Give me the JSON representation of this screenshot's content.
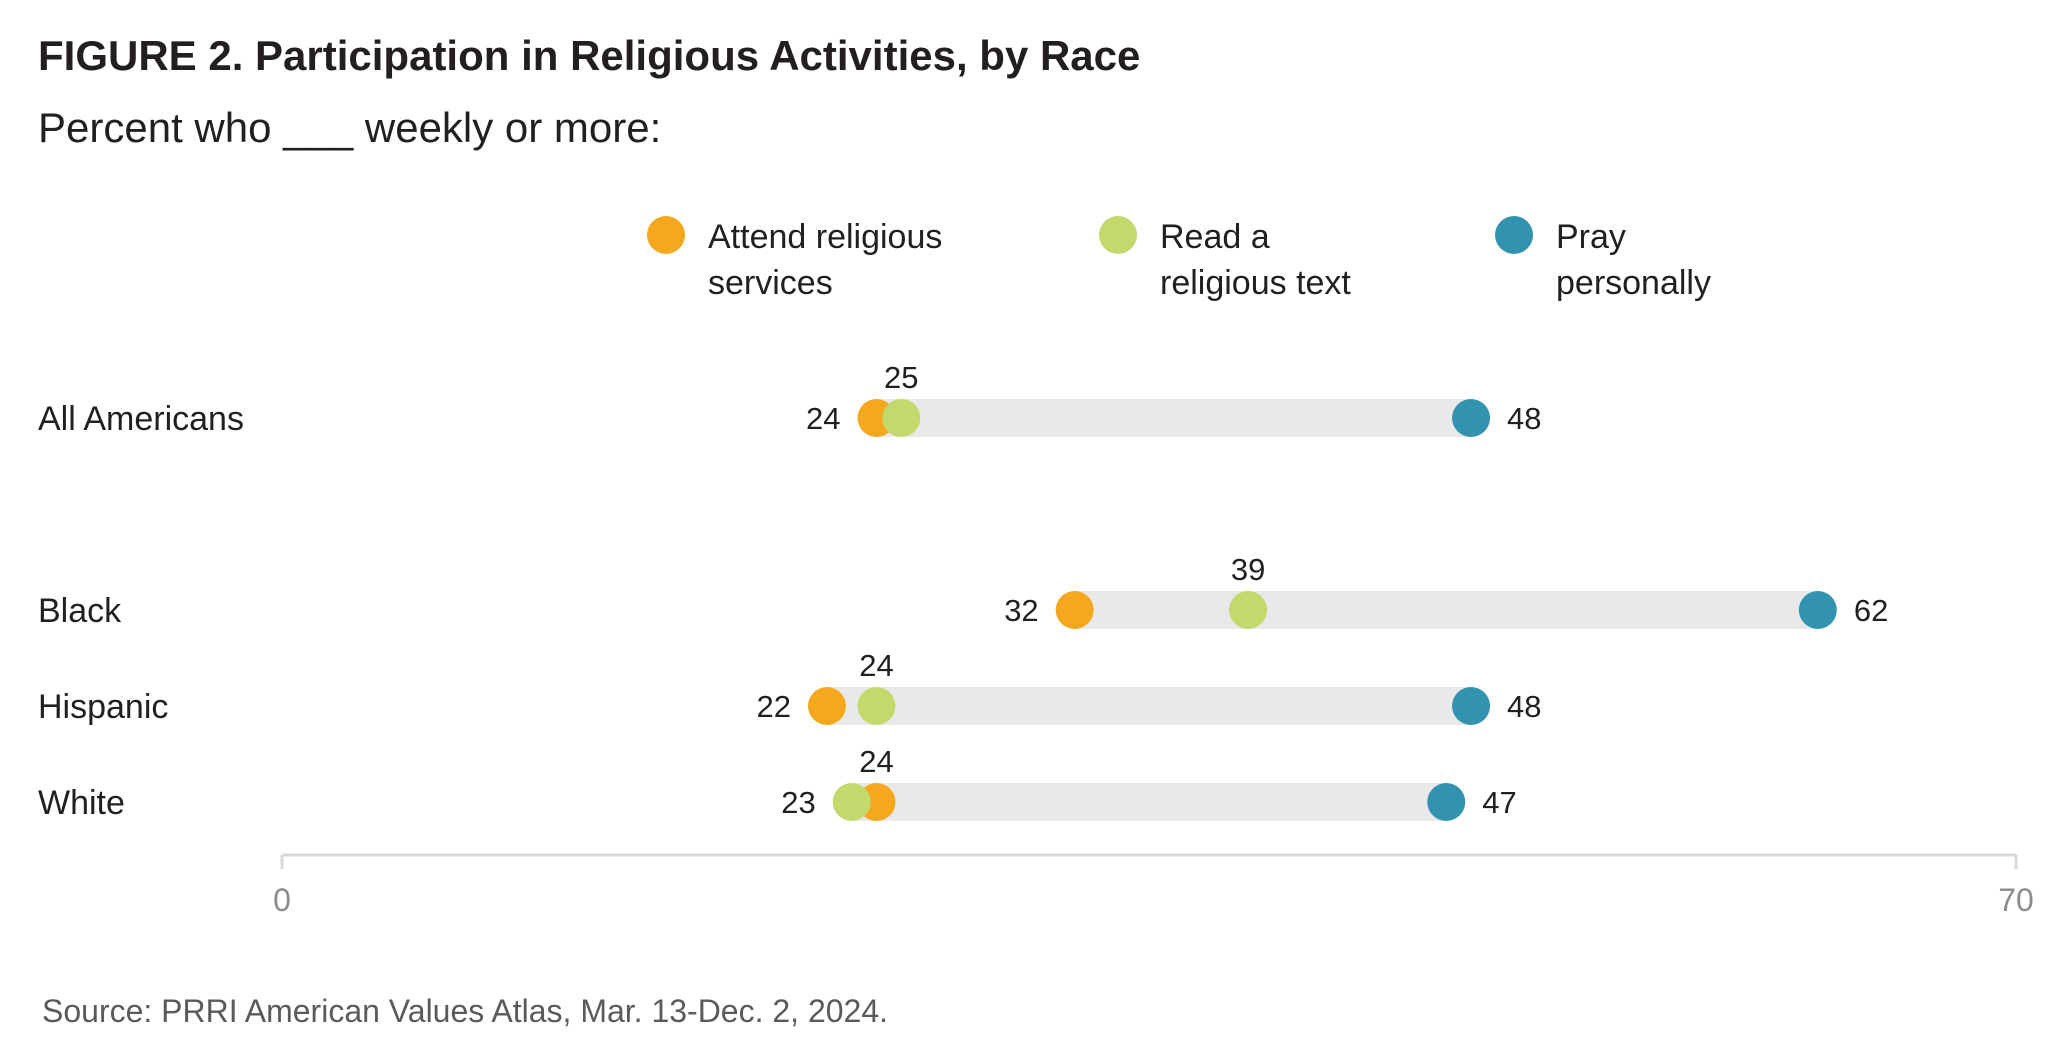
{
  "header": {
    "title": "FIGURE 2.  Participation in Religious Activities, by Race",
    "subtitle": "Percent who ___ weekly or more:"
  },
  "legend": [
    {
      "line1": "Attend religious",
      "line2": "services",
      "color": "#f5a81e"
    },
    {
      "line1": "Read a",
      "line2": "religious text",
      "color": "#c2d96b"
    },
    {
      "line1": "Pray",
      "line2": "personally",
      "color": "#3193b0"
    }
  ],
  "footer": {
    "source": "Source: PRRI American Values Atlas, Mar. 13-Dec. 2, 2024."
  },
  "chart_data": {
    "type": "dot",
    "title": "FIGURE 2.  Participation in Religious Activities, by Race",
    "subtitle": "Percent who ___ weekly or more:",
    "categories": [
      "All Americans",
      "Black",
      "Hispanic",
      "White"
    ],
    "series": [
      {
        "name": "Attend religious services",
        "color": "#f5a81e",
        "values": [
          24,
          32,
          22,
          24
        ]
      },
      {
        "name": "Read a religious text",
        "color": "#c2d96b",
        "values": [
          25,
          39,
          24,
          23
        ]
      },
      {
        "name": "Pray personally",
        "color": "#3193b0",
        "values": [
          48,
          62,
          48,
          47
        ]
      }
    ],
    "xlim": [
      0,
      70
    ],
    "xticks": [
      "0",
      "70"
    ],
    "grid": false,
    "legend_position": "top"
  }
}
